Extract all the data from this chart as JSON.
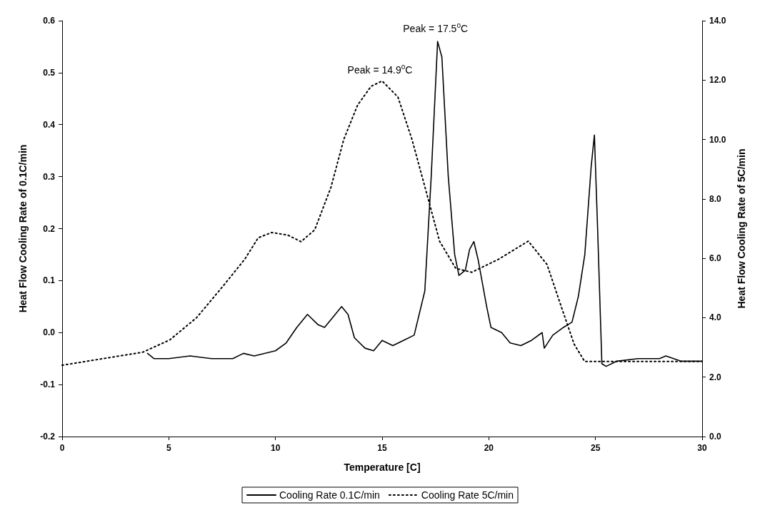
{
  "chart_data": {
    "type": "line",
    "xlabel": "Temperature [C]",
    "ylabel": "Heat Flow Cooling Rate of 0.1C/min",
    "y2label": "Heat Flow Cooling Rate of 5C/min",
    "xlim": [
      0,
      30
    ],
    "xticks": [
      0,
      5,
      10,
      15,
      20,
      25,
      30
    ],
    "ylim": [
      -0.2,
      0.6
    ],
    "yticks": [
      {
        "value": -0.2,
        "label": "-0.2"
      },
      {
        "value": -0.1,
        "label": "-0.1"
      },
      {
        "value": 0,
        "label": "0.0"
      },
      {
        "value": 0.1,
        "label": "0.1"
      },
      {
        "value": 0.2,
        "label": "0.2"
      },
      {
        "value": 0.3,
        "label": "0.3"
      },
      {
        "value": 0.4,
        "label": "0.4"
      },
      {
        "value": 0.5,
        "label": "0.5"
      },
      {
        "value": 0.6,
        "label": "0.6"
      }
    ],
    "y2lim": [
      0,
      14
    ],
    "y2ticks": [
      {
        "value": 0,
        "label": "0.0"
      },
      {
        "value": 2,
        "label": "2.0"
      },
      {
        "value": 4,
        "label": "4.0"
      },
      {
        "value": 6,
        "label": "6.0"
      },
      {
        "value": 8,
        "label": "8.0"
      },
      {
        "value": 10,
        "label": "10.0"
      },
      {
        "value": 12,
        "label": "12.0"
      },
      {
        "value": 14,
        "label": "14.0"
      }
    ],
    "grid": false,
    "legend": "bottom",
    "marker": "none",
    "annotations": [
      {
        "text": "Peak = 14.9$^{o}$C",
        "x": 14.9,
        "y": 0.48
      },
      {
        "text": "Peak = 17.5$^{o}$C",
        "x": 17.5,
        "y": 0.56
      }
    ],
    "series": [
      {
        "name": "Cooling Rate 0.1C/min",
        "color": "#000000",
        "line_style": "solid",
        "x": [
          4,
          4.3,
          5,
          6,
          7,
          8,
          8.5,
          9,
          10,
          10.5,
          11,
          11.5,
          12,
          12.3,
          12.7,
          13.1,
          13.4,
          13.7,
          14.2,
          14.6,
          15,
          15.5,
          16,
          16.5,
          17,
          17.3,
          17.6,
          17.8,
          18.1,
          18.4,
          18.6,
          18.9,
          19.1,
          19.3,
          19.5,
          19.9,
          20.1,
          20.6,
          21,
          21.5,
          22,
          22.5,
          22.6,
          23,
          23.5,
          23.9,
          24.2,
          24.5,
          24.8,
          24.95,
          25.1,
          25.3,
          25.5,
          26,
          27,
          28,
          28.3,
          29,
          30
        ],
        "values": [
          -0.04,
          -0.05,
          -0.05,
          -0.045,
          -0.05,
          -0.05,
          -0.04,
          -0.045,
          -0.035,
          -0.02,
          0.01,
          0.035,
          0.015,
          0.01,
          0.03,
          0.05,
          0.035,
          -0.01,
          -0.03,
          -0.035,
          -0.015,
          -0.025,
          -0.015,
          -0.005,
          0.08,
          0.3,
          0.56,
          0.53,
          0.3,
          0.15,
          0.11,
          0.12,
          0.16,
          0.175,
          0.14,
          0.05,
          0.01,
          0,
          -0.02,
          -0.025,
          -0.015,
          0,
          -0.03,
          -0.005,
          0.01,
          0.02,
          0.07,
          0.15,
          0.32,
          0.38,
          0.2,
          -0.06,
          -0.065,
          -0.055,
          -0.05,
          -0.05,
          -0.045,
          -0.055,
          -0.055
        ]
      },
      {
        "name": "Cooling Rate 5C/min",
        "color": "#000000",
        "line_style": "dotted",
        "axis": "y2",
        "x": [
          0,
          3.78,
          5.04,
          6.3,
          7.56,
          8.56,
          9.19,
          9.82,
          10.58,
          11.2,
          11.84,
          12.6,
          13.2,
          13.85,
          14.48,
          15,
          15.74,
          16.4,
          17.18,
          17.69,
          18.45,
          19.2,
          20.46,
          21.85,
          22.73,
          23.36,
          24,
          24.49,
          25.25,
          30
        ],
        "values": [
          2.4,
          2.84,
          3.25,
          4.0,
          5.08,
          5.97,
          6.69,
          6.87,
          6.78,
          6.56,
          6.96,
          8.39,
          10.0,
          11.16,
          11.79,
          11.97,
          11.43,
          10.0,
          7.94,
          6.58,
          5.66,
          5.53,
          5.97,
          6.58,
          5.79,
          4.45,
          3.11,
          2.53,
          2.53,
          2.53
        ]
      }
    ]
  }
}
